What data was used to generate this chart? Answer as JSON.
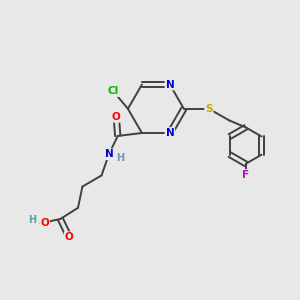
{
  "bg_color": "#e8e8e8",
  "bond_color": "#404040",
  "atom_colors": {
    "N": "#0000cc",
    "O": "#ff0000",
    "S": "#ccaa00",
    "Cl": "#00bb00",
    "F": "#cc00cc",
    "H": "#6699aa",
    "C": "#404040"
  }
}
